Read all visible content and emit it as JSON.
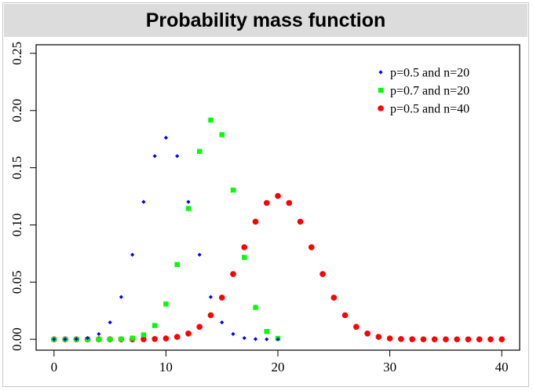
{
  "title": "Probability mass function",
  "chart_data": {
    "type": "scatter",
    "title": "Probability mass function",
    "xlabel": "",
    "ylabel": "",
    "xlim": [
      -1.6,
      41.6
    ],
    "ylim": [
      -0.0095,
      0.2575
    ],
    "xticks": [
      0,
      10,
      20,
      30,
      40
    ],
    "xtick_labels": [
      "0",
      "10",
      "20",
      "30",
      "40"
    ],
    "yticks": [
      0.0,
      0.05,
      0.1,
      0.15,
      0.2,
      0.25
    ],
    "ytick_labels": [
      "0.00",
      "0.05",
      "0.10",
      "0.15",
      "0.20",
      "0.25"
    ],
    "grid": false,
    "legend_position": "top-right",
    "series": [
      {
        "name": "p=0.5 and n=20",
        "color": "#0000ff",
        "marker": "diamond",
        "x": [
          0,
          1,
          2,
          3,
          4,
          5,
          6,
          7,
          8,
          9,
          10,
          11,
          12,
          13,
          14,
          15,
          16,
          17,
          18,
          19,
          20
        ],
        "y": [
          1e-06,
          1.9e-05,
          0.000181,
          0.001087,
          0.004621,
          0.014786,
          0.036964,
          0.073929,
          0.120134,
          0.160179,
          0.176197,
          0.160179,
          0.120134,
          0.073929,
          0.036964,
          0.014786,
          0.004621,
          0.001087,
          0.000181,
          1.9e-05,
          1e-06
        ]
      },
      {
        "name": "p=0.7 and n=20",
        "color": "#00ff00",
        "marker": "square",
        "x": [
          0,
          1,
          2,
          3,
          4,
          5,
          6,
          7,
          8,
          9,
          10,
          11,
          12,
          13,
          14,
          15,
          16,
          17,
          18,
          19,
          20
        ],
        "y": [
          0,
          0,
          0,
          0,
          5e-06,
          3.7e-05,
          0.000218,
          0.001018,
          0.003859,
          0.012007,
          0.030817,
          0.06537,
          0.114397,
          0.164262,
          0.191639,
          0.178863,
          0.130421,
          0.071604,
          0.027846,
          0.006839,
          0.000798
        ]
      },
      {
        "name": "p=0.5 and n=40",
        "color": "#ff0000",
        "marker": "circle",
        "x": [
          0,
          1,
          2,
          3,
          4,
          5,
          6,
          7,
          8,
          9,
          10,
          11,
          12,
          13,
          14,
          15,
          16,
          17,
          18,
          19,
          20,
          21,
          22,
          23,
          24,
          25,
          26,
          27,
          28,
          29,
          30,
          31,
          32,
          33,
          34,
          35,
          36,
          37,
          38,
          39,
          40
        ],
        "y": [
          0,
          0,
          0,
          0,
          0,
          1e-06,
          3e-06,
          1.7e-05,
          7e-05,
          0.000248,
          0.000768,
          0.002096,
          0.005066,
          0.010911,
          0.021044,
          0.036471,
          0.057004,
          0.080476,
          0.10283,
          0.1192,
          0.12537,
          0.1192,
          0.10283,
          0.080476,
          0.057004,
          0.036471,
          0.021044,
          0.010911,
          0.005066,
          0.002096,
          0.000768,
          0.000248,
          7e-05,
          1.7e-05,
          3e-06,
          1e-06,
          0,
          0,
          0,
          0,
          0
        ]
      }
    ]
  }
}
